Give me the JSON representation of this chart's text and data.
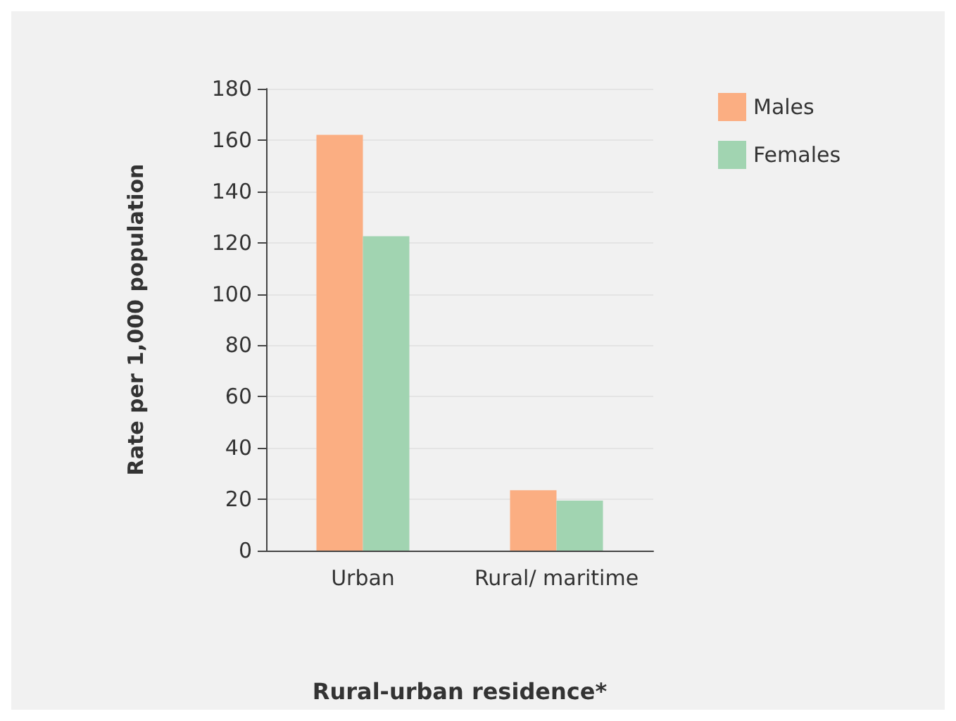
{
  "chart_data": {
    "type": "bar",
    "xlabel": "Rural-urban residence*",
    "ylabel": "Rate per 1,000 population",
    "categories": [
      "Urban",
      "Rural/ maritime"
    ],
    "series": [
      {
        "name": "Males",
        "color": "#fbae82",
        "values": [
          162,
          23.5
        ]
      },
      {
        "name": "Females",
        "color": "#a1d4b1",
        "values": [
          122.5,
          19.5
        ]
      }
    ],
    "ylim": [
      0,
      180
    ],
    "yticks": [
      0,
      20,
      40,
      60,
      80,
      100,
      120,
      140,
      160,
      180
    ],
    "grid": "y",
    "legend": "top right"
  }
}
